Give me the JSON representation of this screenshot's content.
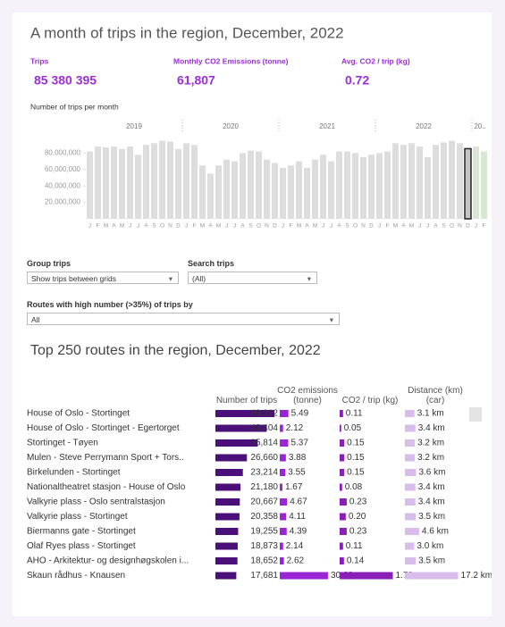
{
  "title": "A month of trips in the region, December, 2022",
  "kpis": [
    {
      "label": "Trips",
      "value": "85 380 395"
    },
    {
      "label": "Monthly CO2 Emissions (tonne)",
      "value": "61,807"
    },
    {
      "label": "Avg. CO2 / trip (kg)",
      "value": "0.72"
    }
  ],
  "chart_data": {
    "type": "bar",
    "title": "Number of trips per month",
    "years": [
      "2019",
      "2020",
      "2021",
      "2022",
      "20.."
    ],
    "categories": [
      "J",
      "F",
      "M",
      "A",
      "M",
      "J",
      "J",
      "A",
      "S",
      "O",
      "N",
      "D",
      "J",
      "F",
      "M",
      "A",
      "M",
      "J",
      "J",
      "A",
      "S",
      "O",
      "N",
      "D",
      "J",
      "F",
      "M",
      "A",
      "M",
      "J",
      "J",
      "A",
      "S",
      "O",
      "N",
      "D",
      "J",
      "F",
      "M",
      "A",
      "M",
      "J",
      "J",
      "A",
      "S",
      "O",
      "N",
      "D",
      "J",
      "F"
    ],
    "values": [
      82000000,
      88000000,
      87000000,
      88000000,
      85000000,
      88000000,
      78000000,
      90000000,
      92000000,
      95000000,
      94000000,
      85000000,
      92000000,
      90000000,
      65000000,
      55000000,
      65000000,
      72000000,
      70000000,
      80000000,
      83000000,
      82000000,
      72000000,
      68000000,
      62000000,
      65000000,
      70000000,
      62000000,
      72000000,
      78000000,
      70000000,
      82000000,
      82000000,
      80000000,
      75000000,
      78000000,
      80000000,
      82000000,
      92000000,
      90000000,
      92000000,
      88000000,
      75000000,
      90000000,
      93000000,
      95000000,
      92000000,
      85380395,
      88000000,
      82000000
    ],
    "colors": [
      "#dddddd",
      "#dddddd",
      "#dddddd",
      "#dddddd",
      "#dddddd",
      "#dddddd",
      "#dddddd",
      "#dddddd",
      "#dddddd",
      "#dddddd",
      "#dddddd",
      "#dddddd",
      "#dddddd",
      "#dddddd",
      "#dddddd",
      "#dddddd",
      "#dddddd",
      "#dddddd",
      "#dddddd",
      "#dddddd",
      "#dddddd",
      "#dddddd",
      "#dddddd",
      "#dddddd",
      "#dddddd",
      "#dddddd",
      "#dddddd",
      "#dddddd",
      "#dddddd",
      "#dddddd",
      "#dddddd",
      "#dddddd",
      "#dddddd",
      "#dddddd",
      "#dddddd",
      "#dddddd",
      "#dddddd",
      "#dddddd",
      "#dddddd",
      "#dddddd",
      "#dddddd",
      "#dddddd",
      "#dddddd",
      "#dddddd",
      "#dddddd",
      "#dddddd",
      "#dddddd",
      "#c4c4c4",
      "#d6e7d2",
      "#d6e7d2"
    ],
    "selected_index": 47,
    "ylim": [
      0,
      100000000
    ],
    "yticks": [
      {
        "value": 20000000,
        "label": "20,000,000"
      },
      {
        "value": 40000000,
        "label": "40,000,000"
      },
      {
        "value": 60000000,
        "label": "60,000,000"
      },
      {
        "value": 80000000,
        "label": "80,000,000"
      }
    ]
  },
  "controls": [
    {
      "label": "Group trips",
      "value": "Show trips between grids"
    },
    {
      "label": "Search trips",
      "value": "(All)"
    },
    {
      "label": "Routes with high number (>35%) of trips by",
      "value": "All"
    }
  ],
  "table": {
    "title": "Top 250 routes in the region, December, 2022",
    "routes": [
      "House of Oslo - Stortinget",
      "House of Oslo - Stortinget - Egertorget",
      "Stortinget - Tøyen",
      "Mulen - Steve Perrymann Sport + Tors..",
      "Birkelunden - Stortinget",
      "Nationaltheatret stasjon - House of Oslo",
      "Valkyrie plass - Oslo sentralstasjon",
      "Valkyrie plass - Stortinget",
      "Biermanns gate - Stortinget",
      "Olaf Ryes plass - Stortinget",
      "AHO - Arkitektur- og designhøgskolen i...",
      "Skaun rådhus - Knausen"
    ],
    "columns": [
      {
        "name": "Number of trips",
        "color": "#4b0f7a",
        "values": [
          49912,
          43404,
          35814,
          26660,
          23214,
          21180,
          20667,
          20358,
          19255,
          18873,
          18652,
          17681
        ],
        "value_labels": [
          "49,912",
          "43,404",
          "35,814",
          "26,660",
          "23,214",
          "21,180",
          "20,667",
          "20,358",
          "19,255",
          "18,873",
          "18,652",
          "17,681"
        ]
      },
      {
        "name": "CO2 emissions (tonne)",
        "color": "#9a24d6",
        "values": [
          5.49,
          2.12,
          5.37,
          3.88,
          3.55,
          1.67,
          4.67,
          4.11,
          4.39,
          2.14,
          2.62,
          30.6
        ],
        "value_labels": [
          "5.49",
          "2.12",
          "5.37",
          "3.88",
          "3.55",
          "1.67",
          "4.67",
          "4.11",
          "4.39",
          "2.14",
          "2.62",
          "30.60"
        ]
      },
      {
        "name": "CO2 / trip (kg)",
        "color": "#8a1fb8",
        "values": [
          0.11,
          0.05,
          0.15,
          0.15,
          0.15,
          0.08,
          0.23,
          0.2,
          0.23,
          0.11,
          0.14,
          1.73
        ],
        "value_labels": [
          "0.11",
          "0.05",
          "0.15",
          "0.15",
          "0.15",
          "0.08",
          "0.23",
          "0.20",
          "0.23",
          "0.11",
          "0.14",
          "1.73"
        ]
      },
      {
        "name": "Distance (km) (car)",
        "color": "#d8bdec",
        "values": [
          3.1,
          3.4,
          3.2,
          3.2,
          3.6,
          3.4,
          3.4,
          3.5,
          4.6,
          3.0,
          3.5,
          17.2
        ],
        "value_labels": [
          "3.1 km",
          "3.4 km",
          "3.2 km",
          "3.2 km",
          "3.6 km",
          "3.4 km",
          "3.4 km",
          "3.5 km",
          "4.6 km",
          "3.0 km",
          "3.5 km",
          "17.2 km"
        ]
      }
    ]
  }
}
